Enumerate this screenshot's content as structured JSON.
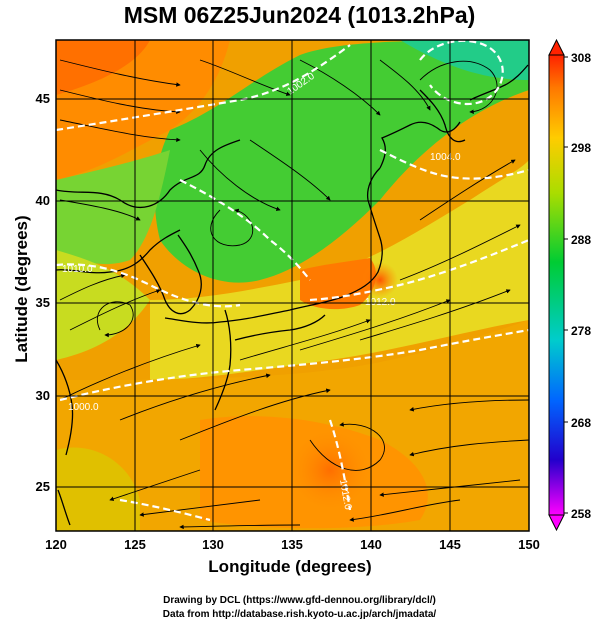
{
  "title": "MSM 06Z25Jun2024 (1013.2hPa)",
  "xaxis": {
    "label": "Longitude (degrees)",
    "ticks": [
      "120",
      "125",
      "130",
      "135",
      "140",
      "145",
      "150"
    ],
    "range": [
      120,
      150
    ]
  },
  "yaxis": {
    "label": "Latitude  (degrees)",
    "ticks": [
      "25",
      "30",
      "35",
      "40",
      "45"
    ],
    "range": [
      22.5,
      47.5
    ]
  },
  "colorbar": {
    "range": [
      258,
      308
    ],
    "ticks": [
      "308",
      "298",
      "288",
      "278",
      "268",
      "258"
    ],
    "colors": [
      "#ff00ff",
      "#0000cc",
      "#0077ff",
      "#00cccc",
      "#00cc33",
      "#aadd00",
      "#ffdd00",
      "#ff9900",
      "#ff3300"
    ]
  },
  "contour_labels": [
    "1002.0",
    "1004.0",
    "1012.0",
    "1010.0",
    "1000.0",
    "1012.0"
  ],
  "footer": {
    "line1": "Drawing by DCL (https://www.gfd-dennou.org/library/dcl/)",
    "line2": "Data from http://database.rish.kyoto-u.ac.jp/arch/jmadata/"
  },
  "colors": {
    "land_warm": "#ff8a00",
    "sea_warm": "#f5a000",
    "cool_green": "#44cc33",
    "gridline": "#000000"
  }
}
